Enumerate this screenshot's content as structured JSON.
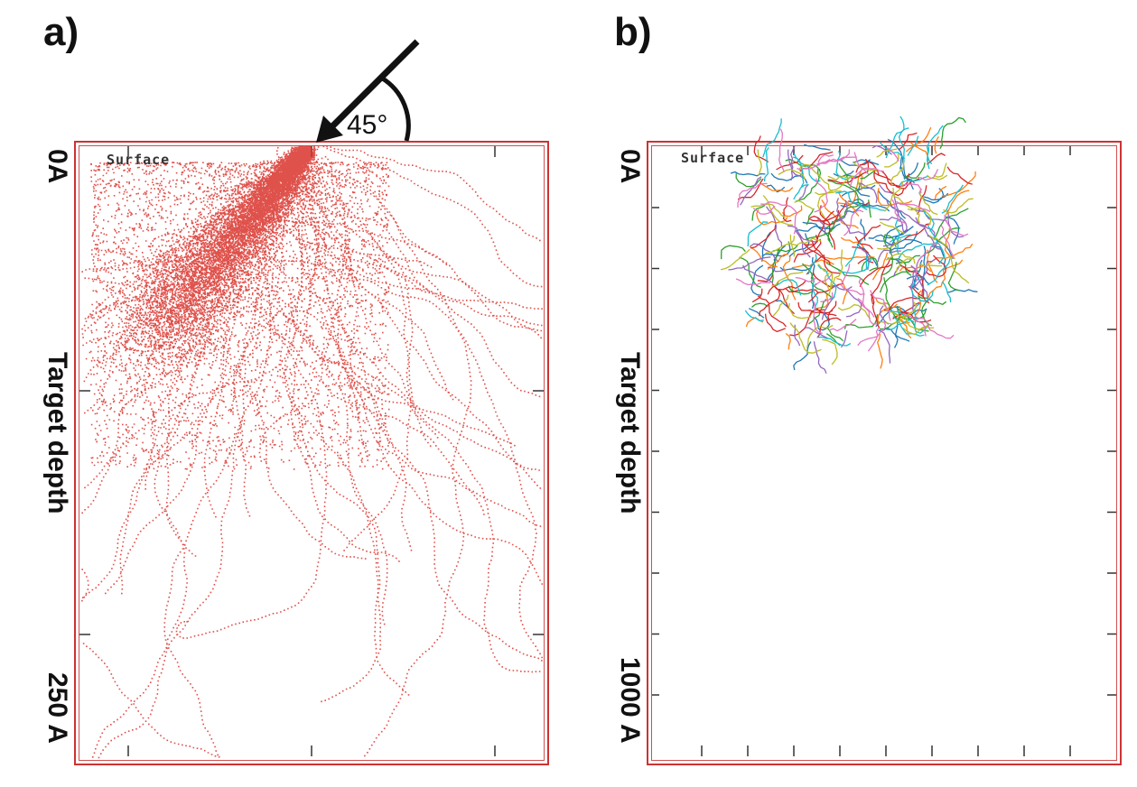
{
  "panel_a": {
    "label": "a)",
    "surface_label": "Surface",
    "axis_label": "Target depth",
    "top_tick_label": "0A",
    "bottom_tick_label": "250 A",
    "angle_label": "45°",
    "track_color": "#d9332b"
  },
  "panel_b": {
    "label": "b)",
    "surface_label": "Surface",
    "axis_label": "Target depth",
    "top_tick_label": "0A",
    "bottom_tick_label": "1000 A",
    "cascade_colors": [
      "#1f77b4",
      "#ff7f0e",
      "#2ca02c",
      "#d62728",
      "#9467bd",
      "#17becf",
      "#bcbd22",
      "#e377c2"
    ]
  },
  "frame_color": "#cc3333"
}
